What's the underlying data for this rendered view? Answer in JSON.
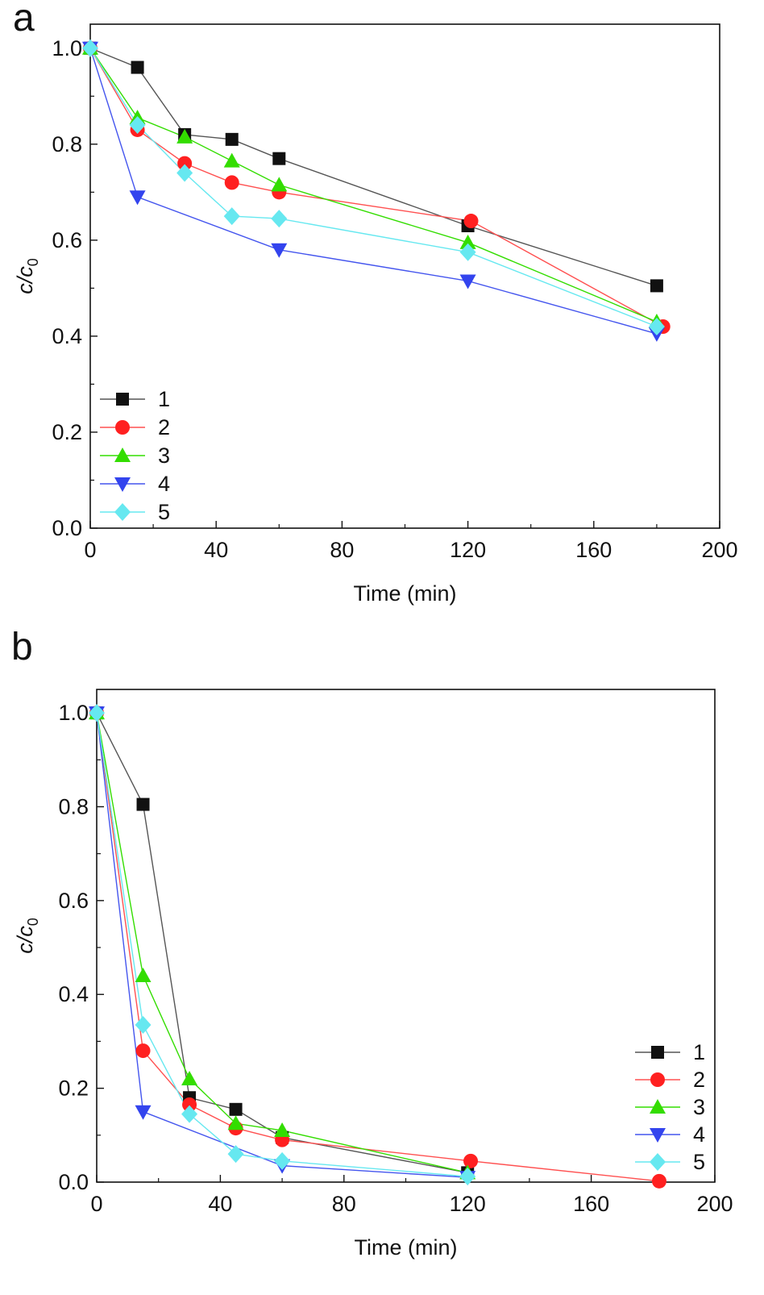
{
  "chart_data": [
    {
      "panel_label": "a",
      "type": "line",
      "xlabel": "Time (min)",
      "ylabel_main": "c/c",
      "ylabel_sub": "0",
      "xlim": [
        0,
        200
      ],
      "ylim": [
        0,
        1.05
      ],
      "xticks": [
        0,
        40,
        80,
        120,
        160,
        200
      ],
      "xtick_labels": [
        "0",
        "40",
        "80",
        "120",
        "160",
        "200"
      ],
      "yticks": [
        0,
        0.2,
        0.4,
        0.6,
        0.8,
        1.0
      ],
      "ytick_labels": [
        "0.0",
        "0.2",
        "0.4",
        "0.6",
        "0.8",
        "1.0"
      ],
      "legend_position": "bottom-left",
      "series": [
        {
          "name": "1",
          "color": "#111111",
          "line_color": "#555555",
          "marker": "square",
          "x": [
            0,
            15,
            30,
            45,
            60,
            120,
            180
          ],
          "y": [
            1.0,
            0.96,
            0.82,
            0.81,
            0.77,
            0.63,
            0.505
          ]
        },
        {
          "name": "2",
          "color": "#ff2020",
          "line_color": "#ff5050",
          "marker": "circle",
          "x": [
            0,
            15,
            30,
            45,
            60,
            121,
            182
          ],
          "y": [
            1.0,
            0.83,
            0.76,
            0.72,
            0.7,
            0.64,
            0.42
          ]
        },
        {
          "name": "3",
          "color": "#33dd00",
          "line_color": "#33dd00",
          "marker": "triangle-up",
          "x": [
            0,
            15,
            30,
            45,
            60,
            120,
            180
          ],
          "y": [
            1.0,
            0.855,
            0.815,
            0.765,
            0.715,
            0.595,
            0.43
          ]
        },
        {
          "name": "4",
          "color": "#3344ee",
          "line_color": "#4455ee",
          "marker": "triangle-down",
          "x": [
            0,
            15,
            60,
            120,
            180
          ],
          "y": [
            1.0,
            0.69,
            0.58,
            0.515,
            0.405
          ]
        },
        {
          "name": "5",
          "color": "#66e8f0",
          "line_color": "#66e8f0",
          "marker": "diamond",
          "x": [
            0,
            15,
            30,
            45,
            60,
            120,
            180
          ],
          "y": [
            1.0,
            0.84,
            0.74,
            0.65,
            0.645,
            0.575,
            0.42
          ]
        }
      ]
    },
    {
      "panel_label": "b",
      "type": "line",
      "xlabel": "Time (min)",
      "ylabel_main": "c/c",
      "ylabel_sub": "0",
      "xlim": [
        0,
        200
      ],
      "ylim": [
        0,
        1.05
      ],
      "xticks": [
        0,
        40,
        80,
        120,
        160,
        200
      ],
      "xtick_labels": [
        "0",
        "40",
        "80",
        "120",
        "160",
        "200"
      ],
      "yticks": [
        0,
        0.2,
        0.4,
        0.6,
        0.8,
        1.0
      ],
      "ytick_labels": [
        "0.0",
        "0.2",
        "0.4",
        "0.6",
        "0.8",
        "1.0"
      ],
      "legend_position": "bottom-right",
      "series": [
        {
          "name": "1",
          "color": "#111111",
          "line_color": "#555555",
          "marker": "square",
          "x": [
            0,
            15,
            30,
            45,
            60,
            120
          ],
          "y": [
            1.0,
            0.805,
            0.18,
            0.155,
            0.095,
            0.02
          ]
        },
        {
          "name": "2",
          "color": "#ff2020",
          "line_color": "#ff5050",
          "marker": "circle",
          "x": [
            0,
            15,
            30,
            45,
            60,
            121,
            182
          ],
          "y": [
            1.0,
            0.28,
            0.165,
            0.115,
            0.09,
            0.045,
            0.002
          ]
        },
        {
          "name": "3",
          "color": "#33dd00",
          "line_color": "#33dd00",
          "marker": "triangle-up",
          "x": [
            0,
            15,
            30,
            45,
            60,
            120
          ],
          "y": [
            1.0,
            0.44,
            0.22,
            0.125,
            0.11,
            0.02
          ]
        },
        {
          "name": "4",
          "color": "#3344ee",
          "line_color": "#4455ee",
          "marker": "triangle-down",
          "x": [
            0,
            15,
            60,
            120
          ],
          "y": [
            1.0,
            0.15,
            0.035,
            0.01
          ]
        },
        {
          "name": "5",
          "color": "#66e8f0",
          "line_color": "#66e8f0",
          "marker": "diamond",
          "x": [
            0,
            15,
            30,
            45,
            60,
            120
          ],
          "y": [
            1.0,
            0.335,
            0.145,
            0.06,
            0.045,
            0.012
          ]
        }
      ]
    }
  ]
}
